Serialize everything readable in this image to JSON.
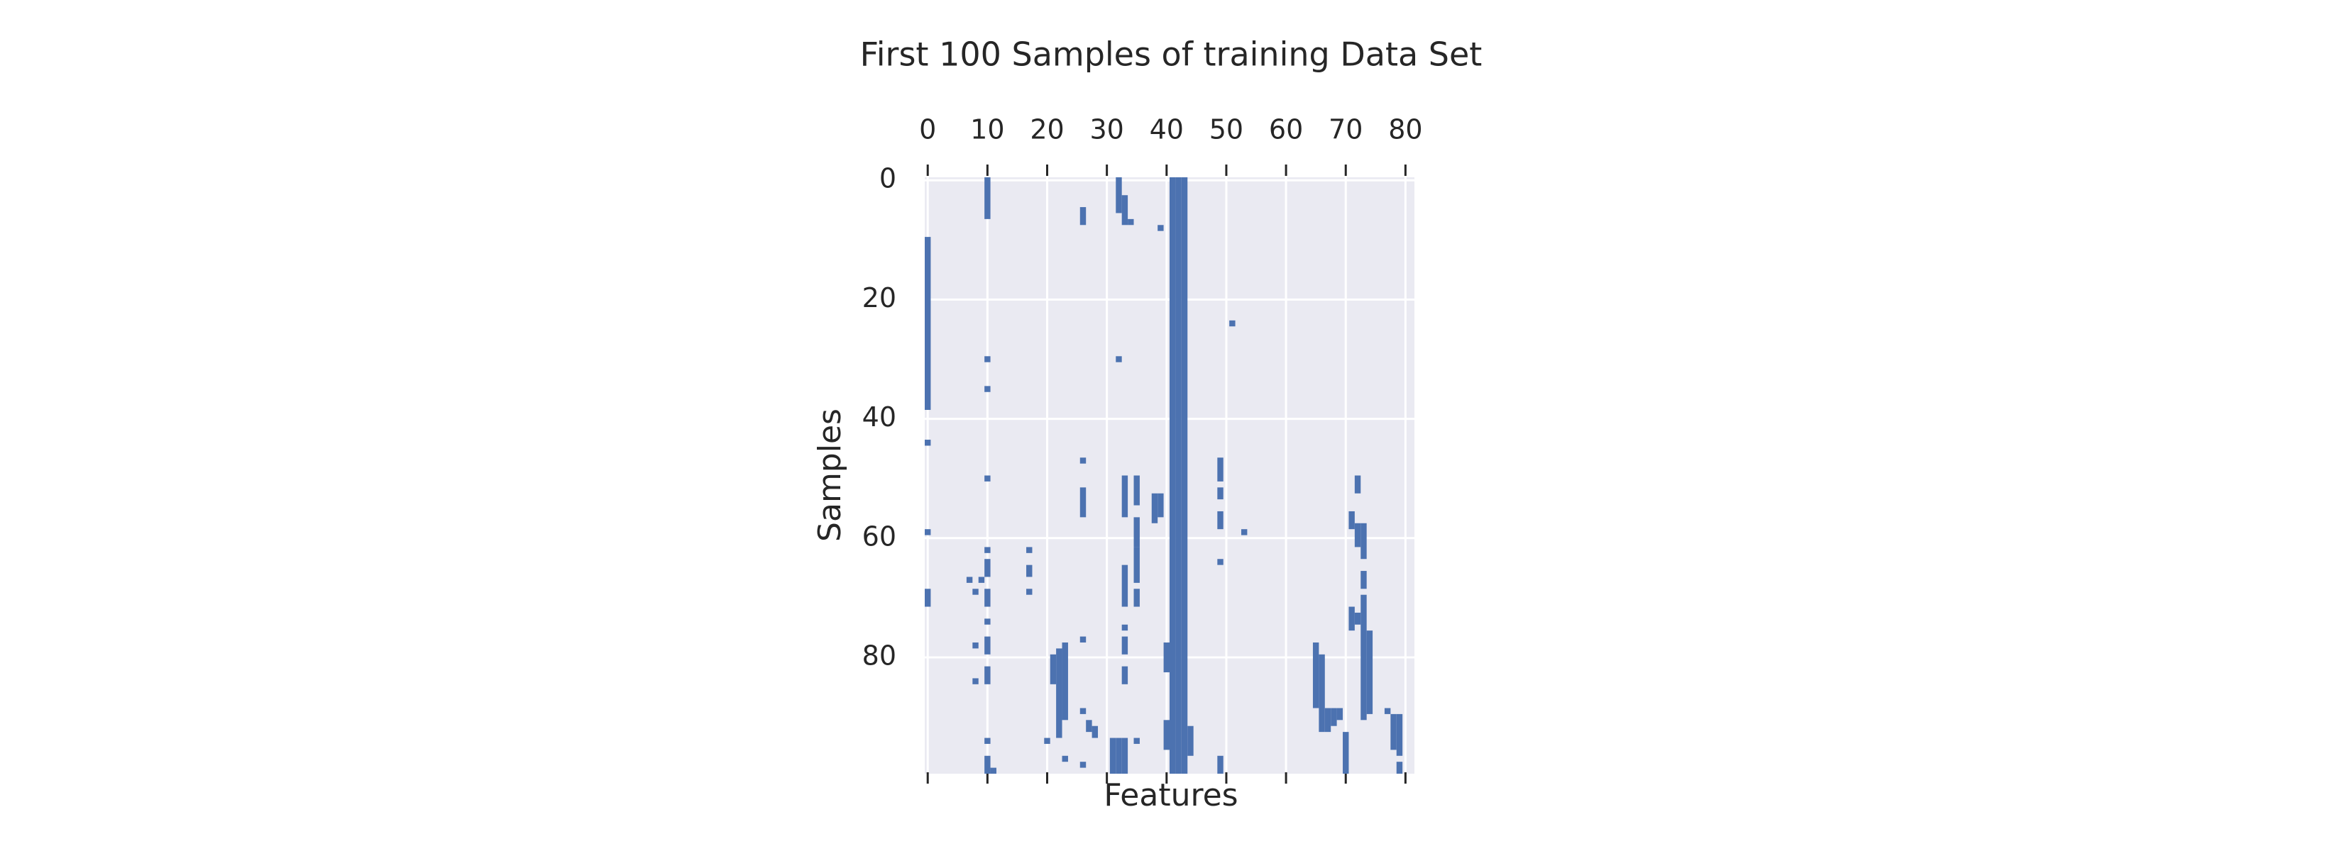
{
  "chart_data": {
    "type": "spy",
    "title": "First 100 Samples of training Data Set",
    "x_label": "Features",
    "y_label": "Samples",
    "xlim": [
      -0.5,
      81.5
    ],
    "ylim": [
      99.5,
      -0.5
    ],
    "xticks": [
      0,
      10,
      20,
      30,
      40,
      50,
      60,
      70,
      80
    ],
    "yticks": [
      0,
      20,
      40,
      60,
      80
    ],
    "grid": true,
    "color": "#4c72b0",
    "background": "#eaeaf2",
    "runs": [
      {
        "x": 0,
        "y": [
          10,
          38
        ]
      },
      {
        "x": 0,
        "y": [
          44,
          44
        ]
      },
      {
        "x": 0,
        "y": [
          59,
          59
        ]
      },
      {
        "x": 0,
        "y": [
          69,
          71
        ]
      },
      {
        "x": 7,
        "y": [
          67,
          67
        ]
      },
      {
        "x": 8,
        "y": [
          69,
          69
        ]
      },
      {
        "x": 8,
        "y": [
          78,
          78
        ]
      },
      {
        "x": 8,
        "y": [
          84,
          84
        ]
      },
      {
        "x": 9,
        "y": [
          67,
          67
        ]
      },
      {
        "x": 10,
        "y": [
          0,
          6
        ]
      },
      {
        "x": 10,
        "y": [
          30,
          30
        ]
      },
      {
        "x": 10,
        "y": [
          35,
          35
        ]
      },
      {
        "x": 10,
        "y": [
          50,
          50
        ]
      },
      {
        "x": 10,
        "y": [
          62,
          62
        ]
      },
      {
        "x": 10,
        "y": [
          64,
          66
        ]
      },
      {
        "x": 10,
        "y": [
          69,
          71
        ]
      },
      {
        "x": 10,
        "y": [
          74,
          74
        ]
      },
      {
        "x": 10,
        "y": [
          77,
          79
        ]
      },
      {
        "x": 10,
        "y": [
          82,
          84
        ]
      },
      {
        "x": 10,
        "y": [
          94,
          94
        ]
      },
      {
        "x": 10,
        "y": [
          97,
          99
        ]
      },
      {
        "x": 11,
        "y": [
          99,
          99
        ]
      },
      {
        "x": 17,
        "y": [
          62,
          62
        ]
      },
      {
        "x": 17,
        "y": [
          65,
          66
        ]
      },
      {
        "x": 17,
        "y": [
          69,
          69
        ]
      },
      {
        "x": 20,
        "y": [
          94,
          94
        ]
      },
      {
        "x": 21,
        "y": [
          80,
          84
        ]
      },
      {
        "x": 22,
        "y": [
          79,
          93
        ]
      },
      {
        "x": 23,
        "y": [
          78,
          90
        ]
      },
      {
        "x": 23,
        "y": [
          97,
          97
        ]
      },
      {
        "x": 26,
        "y": [
          5,
          7
        ]
      },
      {
        "x": 26,
        "y": [
          47,
          47
        ]
      },
      {
        "x": 26,
        "y": [
          52,
          56
        ]
      },
      {
        "x": 26,
        "y": [
          77,
          77
        ]
      },
      {
        "x": 26,
        "y": [
          89,
          89
        ]
      },
      {
        "x": 26,
        "y": [
          98,
          98
        ]
      },
      {
        "x": 27,
        "y": [
          91,
          92
        ]
      },
      {
        "x": 28,
        "y": [
          92,
          93
        ]
      },
      {
        "x": 31,
        "y": [
          94,
          99
        ]
      },
      {
        "x": 32,
        "y": [
          0,
          5
        ]
      },
      {
        "x": 32,
        "y": [
          30,
          30
        ]
      },
      {
        "x": 32,
        "y": [
          94,
          99
        ]
      },
      {
        "x": 33,
        "y": [
          3,
          7
        ]
      },
      {
        "x": 33,
        "y": [
          50,
          56
        ]
      },
      {
        "x": 33,
        "y": [
          65,
          71
        ]
      },
      {
        "x": 33,
        "y": [
          75,
          75
        ]
      },
      {
        "x": 33,
        "y": [
          77,
          79
        ]
      },
      {
        "x": 33,
        "y": [
          82,
          84
        ]
      },
      {
        "x": 33,
        "y": [
          94,
          99
        ]
      },
      {
        "x": 34,
        "y": [
          7,
          7
        ]
      },
      {
        "x": 35,
        "y": [
          50,
          54
        ]
      },
      {
        "x": 35,
        "y": [
          57,
          61
        ]
      },
      {
        "x": 35,
        "y": [
          62,
          67
        ]
      },
      {
        "x": 35,
        "y": [
          69,
          71
        ]
      },
      {
        "x": 35,
        "y": [
          94,
          94
        ]
      },
      {
        "x": 38,
        "y": [
          53,
          57
        ]
      },
      {
        "x": 39,
        "y": [
          8,
          8
        ]
      },
      {
        "x": 39,
        "y": [
          53,
          56
        ]
      },
      {
        "x": 40,
        "y": [
          78,
          82
        ]
      },
      {
        "x": 40,
        "y": [
          91,
          95
        ]
      },
      {
        "x": 41,
        "y": [
          0,
          99
        ]
      },
      {
        "x": 42,
        "y": [
          0,
          99
        ]
      },
      {
        "x": 43,
        "y": [
          0,
          99
        ]
      },
      {
        "x": 44,
        "y": [
          92,
          96
        ]
      },
      {
        "x": 49,
        "y": [
          47,
          50
        ]
      },
      {
        "x": 49,
        "y": [
          52,
          53
        ]
      },
      {
        "x": 49,
        "y": [
          56,
          58
        ]
      },
      {
        "x": 49,
        "y": [
          64,
          64
        ]
      },
      {
        "x": 49,
        "y": [
          97,
          99
        ]
      },
      {
        "x": 51,
        "y": [
          24,
          24
        ]
      },
      {
        "x": 53,
        "y": [
          59,
          59
        ]
      },
      {
        "x": 65,
        "y": [
          78,
          88
        ]
      },
      {
        "x": 66,
        "y": [
          80,
          92
        ]
      },
      {
        "x": 67,
        "y": [
          89,
          92
        ]
      },
      {
        "x": 68,
        "y": [
          89,
          91
        ]
      },
      {
        "x": 69,
        "y": [
          89,
          90
        ]
      },
      {
        "x": 70,
        "y": [
          93,
          99
        ]
      },
      {
        "x": 71,
        "y": [
          56,
          58
        ]
      },
      {
        "x": 71,
        "y": [
          72,
          75
        ]
      },
      {
        "x": 72,
        "y": [
          50,
          52
        ]
      },
      {
        "x": 72,
        "y": [
          58,
          61
        ]
      },
      {
        "x": 72,
        "y": [
          73,
          74
        ]
      },
      {
        "x": 73,
        "y": [
          58,
          63
        ]
      },
      {
        "x": 73,
        "y": [
          66,
          68
        ]
      },
      {
        "x": 73,
        "y": [
          70,
          90
        ]
      },
      {
        "x": 74,
        "y": [
          76,
          89
        ]
      },
      {
        "x": 77,
        "y": [
          89,
          89
        ]
      },
      {
        "x": 78,
        "y": [
          90,
          95
        ]
      },
      {
        "x": 79,
        "y": [
          90,
          96
        ]
      },
      {
        "x": 79,
        "y": [
          98,
          99
        ]
      }
    ]
  }
}
